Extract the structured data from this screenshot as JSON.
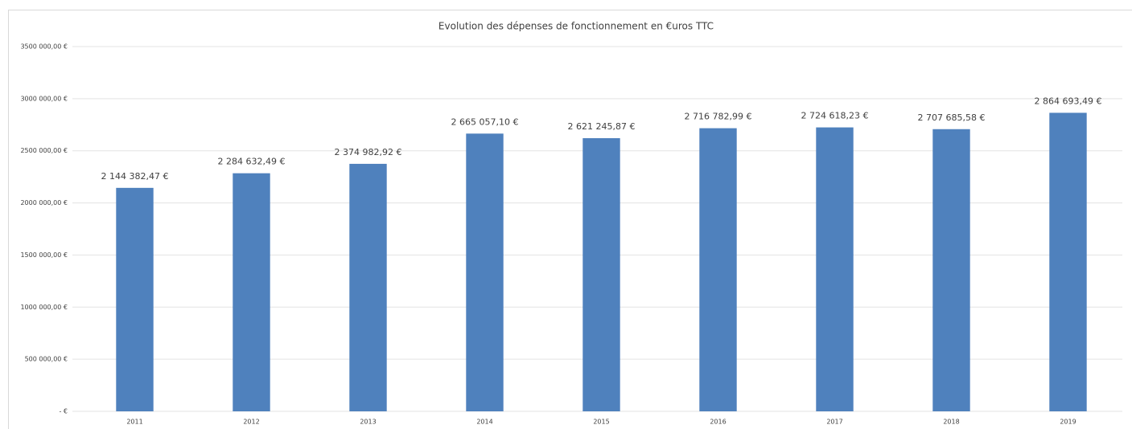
{
  "chart_data": {
    "type": "bar",
    "title": "Evolution des dépenses de fonctionnement en €uros TTC",
    "categories": [
      "2011",
      "2012",
      "2013",
      "2014",
      "2015",
      "2016",
      "2017",
      "2018",
      "2019"
    ],
    "values": [
      2144382.47,
      2284632.49,
      2374982.92,
      2665057.1,
      2621245.87,
      2716782.99,
      2724618.23,
      2707685.58,
      2864693.49
    ],
    "value_labels": [
      "2 144 382,47 €",
      "2 284 632,49 €",
      "2 374 982,92 €",
      "2 665 057,10 €",
      "2 621 245,87 €",
      "2 716 782,99 €",
      "2 724 618,23 €",
      "2 707 685,58 €",
      "2 864 693,49 €"
    ],
    "color": "#4f81bd",
    "ylim": [
      0,
      3500000
    ],
    "yticks": [
      {
        "value": 0,
        "label": "-  €"
      },
      {
        "value": 500000,
        "label": "500 000,00 €"
      },
      {
        "value": 1000000,
        "label": "1000 000,00 €"
      },
      {
        "value": 1500000,
        "label": "1500 000,00 €"
      },
      {
        "value": 2000000,
        "label": "2000 000,00 €"
      },
      {
        "value": 2500000,
        "label": "2500 000,00 €"
      },
      {
        "value": 3000000,
        "label": "3000 000,00 €"
      },
      {
        "value": 3500000,
        "label": "3500 000,00 €"
      }
    ],
    "grid": true
  }
}
